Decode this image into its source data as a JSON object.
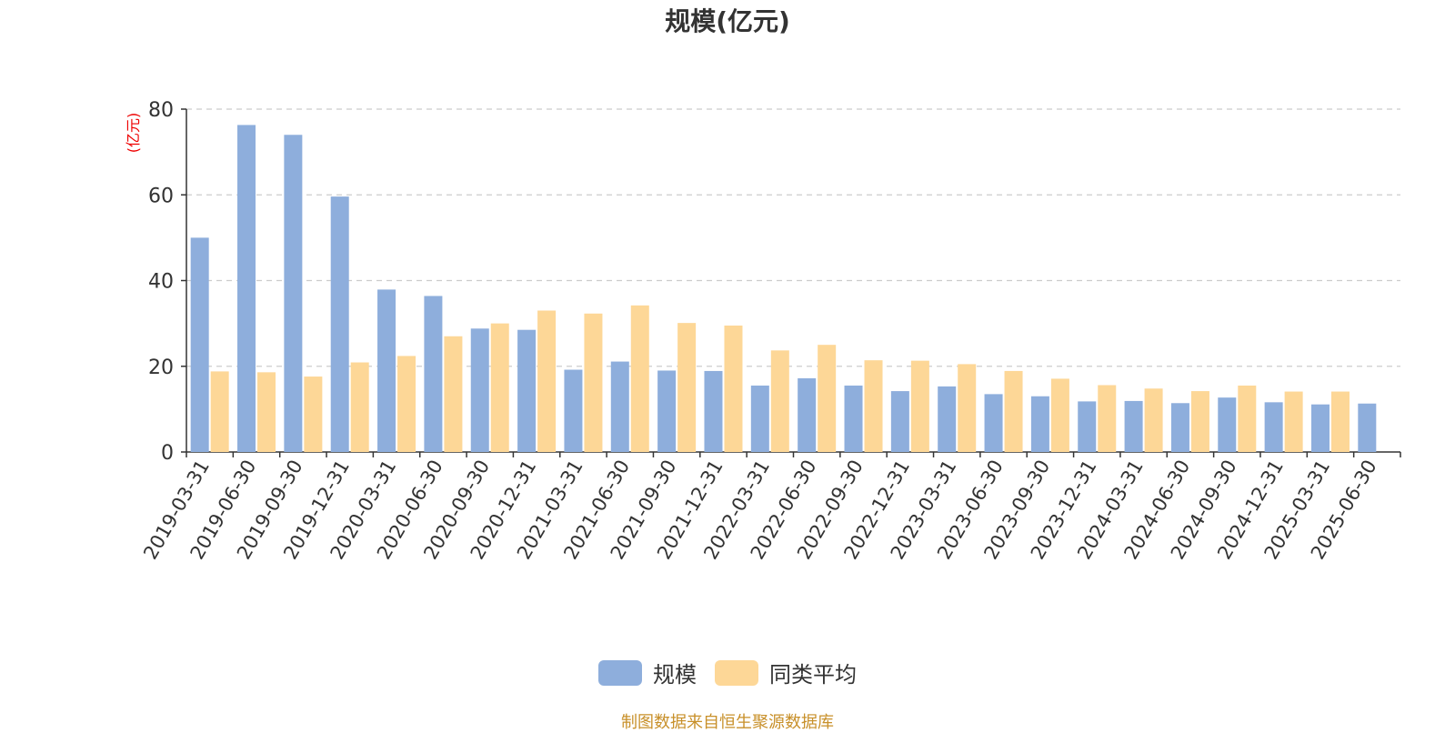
{
  "chart_data": {
    "type": "bar",
    "title": "规模(亿元)",
    "ylabel": "(亿元)",
    "xlabel": "",
    "ylim": [
      0,
      80
    ],
    "yticks": [
      0,
      20,
      40,
      60,
      80
    ],
    "grid": "horizontal-dashed",
    "legend_position": "bottom-center",
    "categories": [
      "2019-03-31",
      "2019-06-30",
      "2019-09-30",
      "2019-12-31",
      "2020-03-31",
      "2020-06-30",
      "2020-09-30",
      "2020-12-31",
      "2021-03-31",
      "2021-06-30",
      "2021-09-30",
      "2021-12-31",
      "2022-03-31",
      "2022-06-30",
      "2022-09-30",
      "2022-12-31",
      "2023-03-31",
      "2023-06-30",
      "2023-09-30",
      "2023-12-31",
      "2024-03-31",
      "2024-06-30",
      "2024-09-30",
      "2024-12-31",
      "2025-03-31",
      "2025-06-30"
    ],
    "series": [
      {
        "name": "规模",
        "color": "#8eaedc",
        "values": [
          50.0,
          76.3,
          74.0,
          59.6,
          37.9,
          36.4,
          28.8,
          28.5,
          19.2,
          21.1,
          19.0,
          18.9,
          15.5,
          17.2,
          15.5,
          14.2,
          15.3,
          13.5,
          13.0,
          11.8,
          11.9,
          11.4,
          12.7,
          11.6,
          11.1,
          11.3
        ]
      },
      {
        "name": "同类平均",
        "color": "#fdd797",
        "values": [
          18.8,
          18.6,
          17.6,
          20.9,
          22.4,
          27.0,
          30.0,
          33.0,
          32.3,
          34.2,
          30.1,
          29.5,
          23.7,
          25.0,
          21.4,
          21.3,
          20.5,
          18.9,
          17.1,
          15.6,
          14.8,
          14.2,
          15.5,
          14.1,
          14.1,
          null
        ]
      }
    ]
  },
  "source": "制图数据来自恒生聚源数据库"
}
